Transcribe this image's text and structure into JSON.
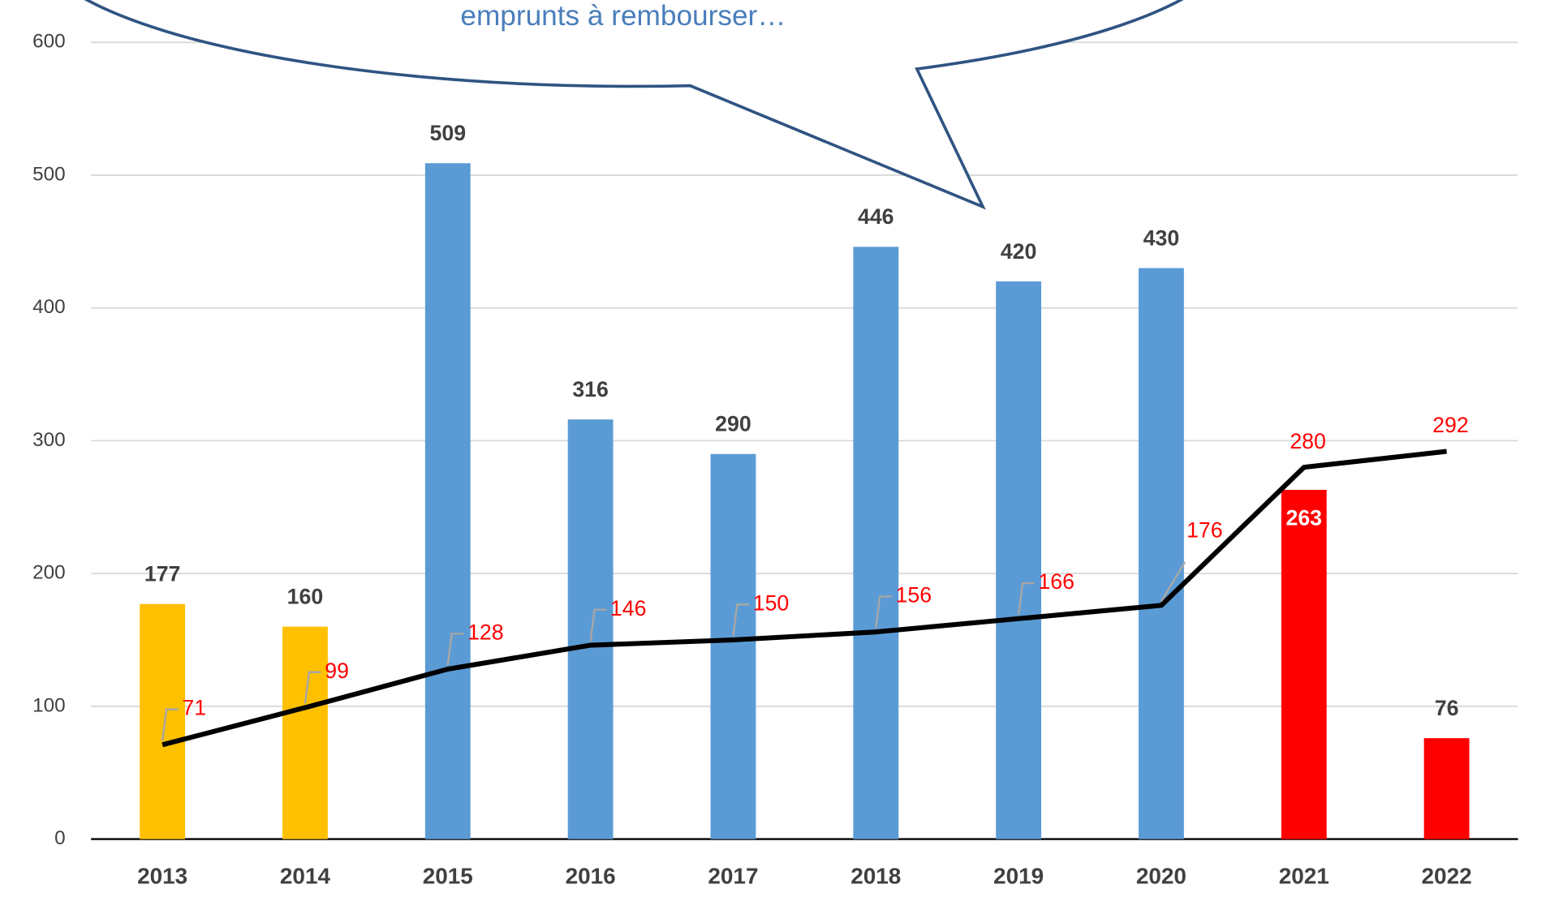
{
  "chart_data": {
    "type": "bar",
    "annotation": "emprunts à rembourser…",
    "categories": [
      "2013",
      "2014",
      "2015",
      "2016",
      "2017",
      "2018",
      "2019",
      "2020",
      "2021",
      "2022"
    ],
    "series": [
      {
        "type": "bar",
        "colors": [
          "#ffc000",
          "#ffc000",
          "#5b9bd5",
          "#5b9bd5",
          "#5b9bd5",
          "#5b9bd5",
          "#5b9bd5",
          "#5b9bd5",
          "#ff0000",
          "#ff0000"
        ],
        "values": [
          177,
          160,
          509,
          316,
          290,
          446,
          420,
          430,
          263,
          76
        ]
      },
      {
        "type": "line",
        "color": "#000000",
        "label_color": "#ff0000",
        "values": [
          71,
          99,
          128,
          146,
          150,
          156,
          166,
          176,
          280,
          292
        ]
      }
    ],
    "ylim": [
      0,
      600
    ],
    "yticks": [
      0,
      100,
      200,
      300,
      400,
      500,
      600
    ],
    "grid": true
  }
}
